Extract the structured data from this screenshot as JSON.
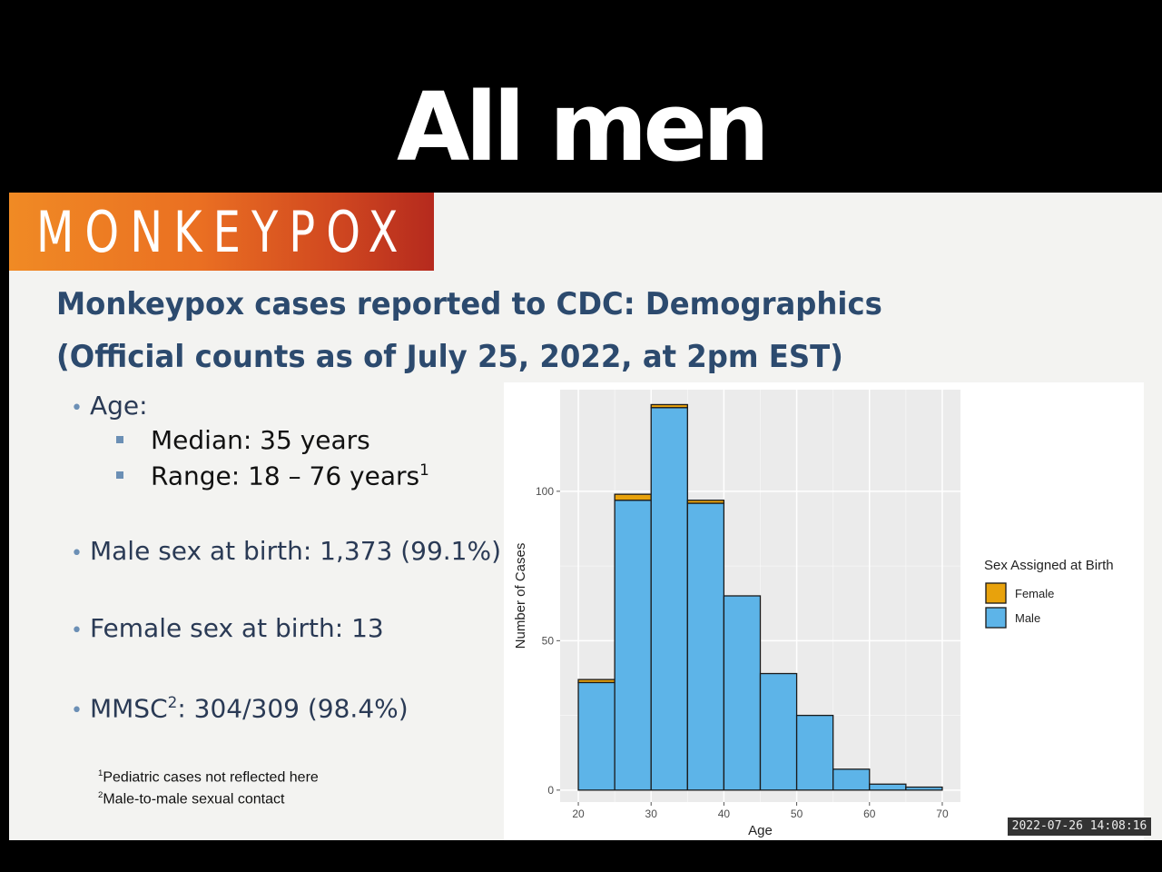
{
  "caption": "All men",
  "banner": "MONKEYPOX",
  "title_line1": "Monkeypox cases reported to CDC: Demographics",
  "title_line2": "(Official counts as of July 25, 2022, at 2pm EST)",
  "bullets": {
    "age": "Age:",
    "median": "Median: 35 years",
    "range": "Range: 18 – 76 years",
    "range_sup": "1",
    "male": "Male sex at birth: 1,373 (99.1%)",
    "female": "Female sex at birth: 13",
    "mmsc_a": "MMSC",
    "mmsc_sup": "2",
    "mmsc_b": ": 304/309 (98.4%)"
  },
  "footnotes": {
    "f1_sup": "1",
    "f1": "Pediatric cases not reflected  here",
    "f2_sup": "2",
    "f2": "Male-to-male sexual contact"
  },
  "timestamp": "2022-07-26 14:08:16",
  "chart_data": {
    "type": "bar",
    "stacked": true,
    "bins": [
      [
        20,
        25
      ],
      [
        25,
        30
      ],
      [
        30,
        35
      ],
      [
        35,
        40
      ],
      [
        40,
        45
      ],
      [
        45,
        50
      ],
      [
        50,
        55
      ],
      [
        55,
        60
      ],
      [
        60,
        65
      ],
      [
        65,
        70
      ]
    ],
    "series": [
      {
        "name": "Male",
        "color": "#5db4e8",
        "values": [
          36,
          97,
          128,
          96,
          65,
          39,
          25,
          7,
          2,
          1
        ]
      },
      {
        "name": "Female",
        "color": "#e8a20c",
        "values": [
          1,
          2,
          1,
          1,
          0,
          0,
          0,
          0,
          0,
          0
        ]
      }
    ],
    "xlabel": "Age",
    "ylabel": "Number of Cases",
    "xticks": [
      20,
      30,
      40,
      50,
      60,
      70
    ],
    "yticks": [
      0,
      50,
      100
    ],
    "xlim": [
      17.5,
      72.5
    ],
    "ylim": [
      -4,
      134
    ],
    "legend_title": "Sex Assigned at Birth",
    "legend_entries": [
      "Female",
      "Male"
    ],
    "legend_position": "right",
    "grid": true,
    "panel_color": "#ebebeb"
  }
}
